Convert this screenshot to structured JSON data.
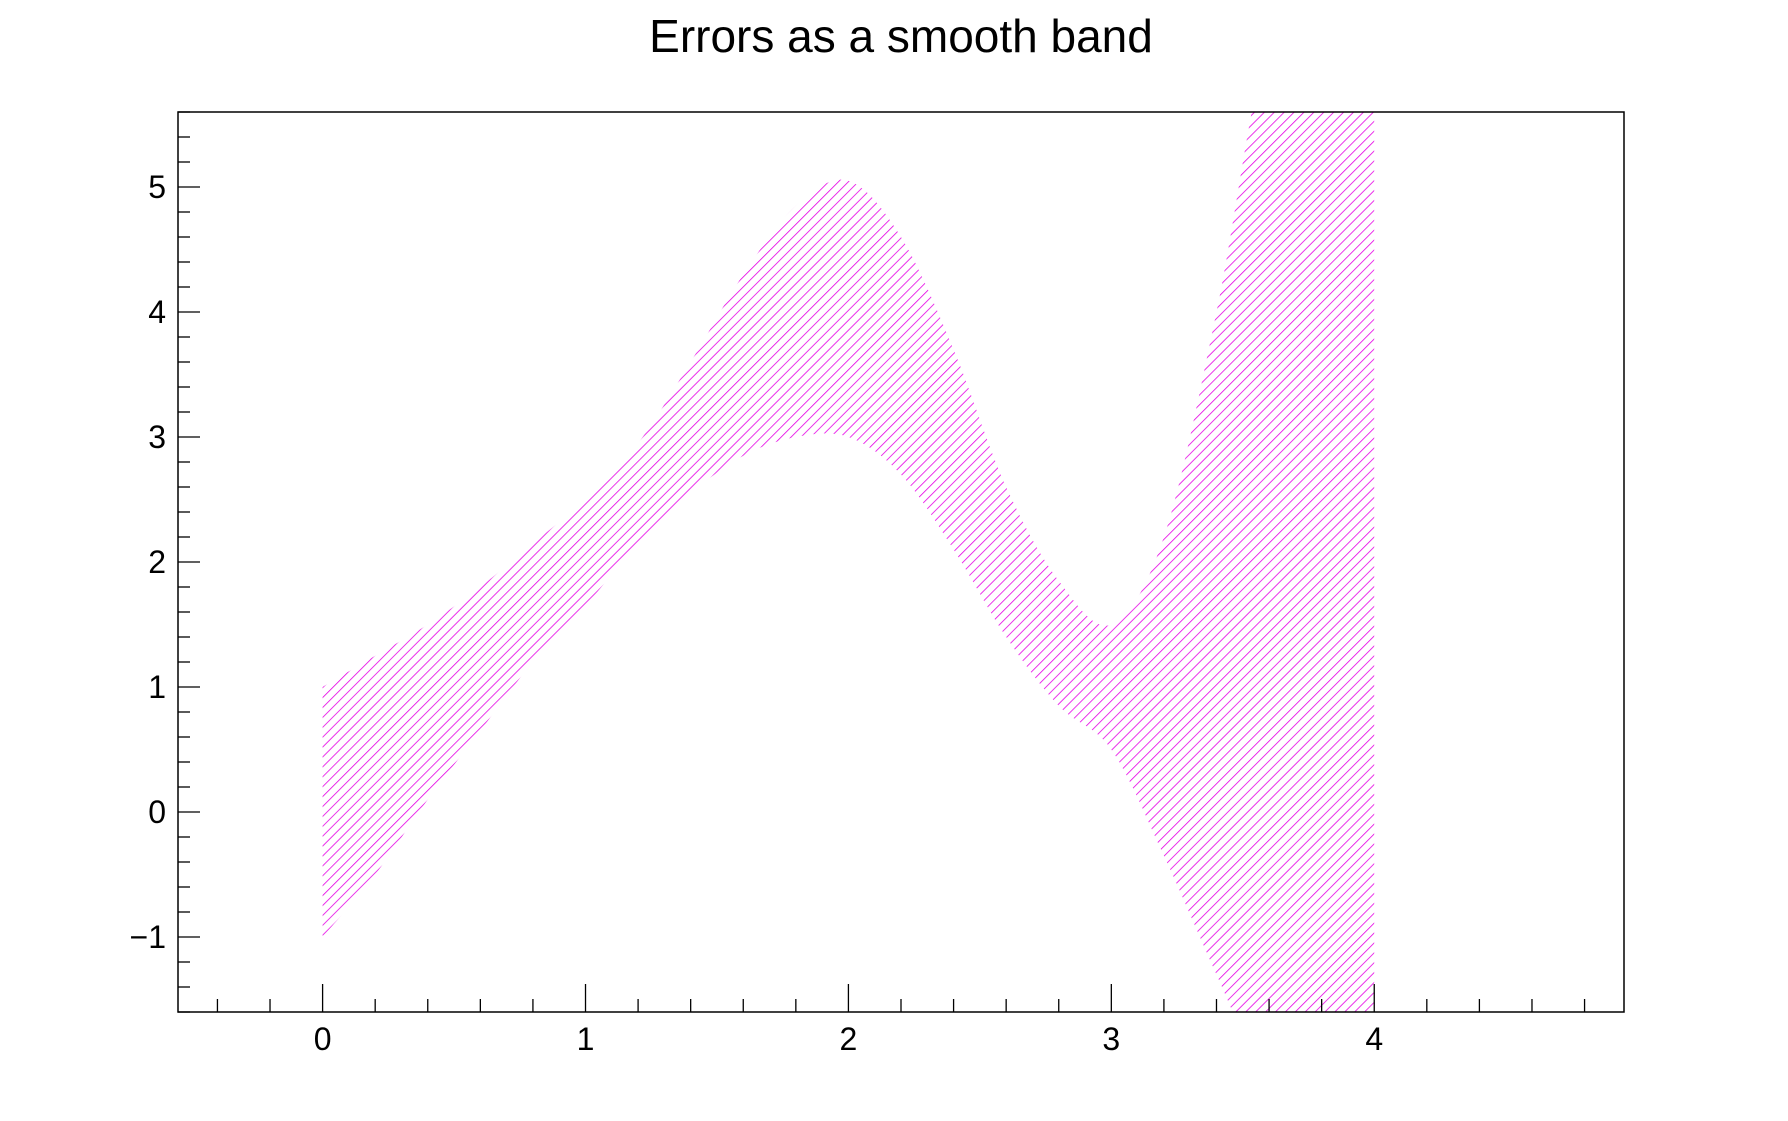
{
  "chart_data": {
    "type": "area",
    "title": "Errors as a smooth band",
    "xlabel": "",
    "ylabel": "",
    "xlim": [
      -0.55,
      4.95
    ],
    "ylim": [
      -1.6,
      5.6
    ],
    "x_ticks": [
      0,
      1,
      2,
      3,
      4
    ],
    "x_tick_labels": [
      "0",
      "1",
      "2",
      "3",
      "4"
    ],
    "y_ticks": [
      -1,
      0,
      1,
      2,
      3,
      4,
      5
    ],
    "y_tick_labels": [
      "−1",
      "0",
      "1",
      "2",
      "3",
      "4",
      "5"
    ],
    "grid": false,
    "legend": "none",
    "band_color": "#e600e6",
    "fill_style": "diagonal-hatch",
    "series": [
      {
        "x": [
          0.0,
          0.2,
          0.4,
          0.6,
          0.8,
          1.0,
          1.2,
          1.4,
          1.6,
          1.8,
          2.0,
          2.2,
          2.4,
          2.6,
          2.8,
          3.0,
          3.2,
          3.4,
          3.6,
          3.8,
          4.0
        ],
        "upper": [
          1.0,
          1.25,
          1.5,
          1.8,
          2.15,
          2.5,
          2.95,
          3.6,
          4.3,
          4.85,
          5.05,
          4.6,
          3.7,
          2.6,
          1.85,
          1.5,
          2.2,
          4.0,
          6.2,
          6.5,
          6.5
        ],
        "lower": [
          -1.0,
          -0.5,
          0.1,
          0.65,
          1.2,
          1.65,
          2.15,
          2.55,
          2.85,
          3.0,
          3.0,
          2.7,
          2.1,
          1.4,
          0.85,
          0.5,
          -0.35,
          -1.3,
          -2.2,
          -2.5,
          -2.5
        ]
      }
    ]
  }
}
